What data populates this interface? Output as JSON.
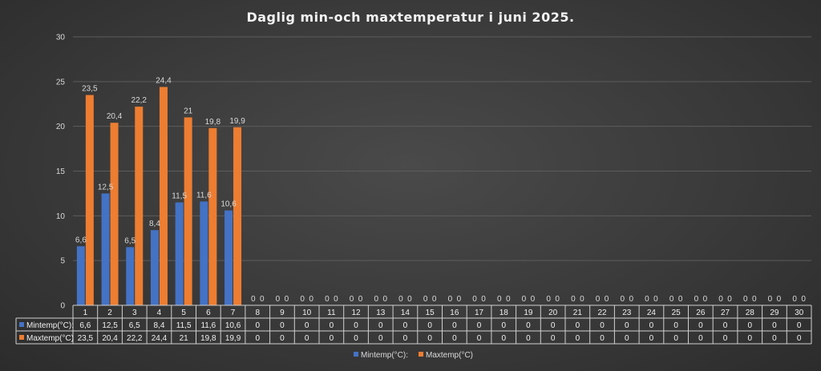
{
  "chart_data": {
    "type": "bar",
    "title": "Daglig min-och maxtemperatur i juni 2025.",
    "xlabel": "",
    "ylabel": "",
    "ylim": [
      0,
      30
    ],
    "yticks": [
      0,
      5,
      10,
      15,
      20,
      25,
      30
    ],
    "grid": true,
    "legend_position": "bottom",
    "categories": [
      "1",
      "2",
      "3",
      "4",
      "5",
      "6",
      "7",
      "8",
      "9",
      "10",
      "11",
      "12",
      "13",
      "14",
      "15",
      "16",
      "17",
      "18",
      "19",
      "20",
      "21",
      "22",
      "23",
      "24",
      "25",
      "26",
      "27",
      "28",
      "29",
      "30"
    ],
    "series": [
      {
        "name": "Mintemp(°C):",
        "color": "#4472c4",
        "values": [
          6.6,
          12.5,
          6.5,
          8.4,
          11.5,
          11.6,
          10.6,
          0,
          0,
          0,
          0,
          0,
          0,
          0,
          0,
          0,
          0,
          0,
          0,
          0,
          0,
          0,
          0,
          0,
          0,
          0,
          0,
          0,
          0,
          0
        ],
        "labels": [
          "6,6",
          "12,5",
          "6,5",
          "8,4",
          "11,5",
          "11,6",
          "10,6",
          "0",
          "0",
          "0",
          "0",
          "0",
          "0",
          "0",
          "0",
          "0",
          "0",
          "0",
          "0",
          "0",
          "0",
          "0",
          "0",
          "0",
          "0",
          "0",
          "0",
          "0",
          "0",
          "0"
        ]
      },
      {
        "name": "Maxtemp(°C)",
        "color": "#ed7d31",
        "values": [
          23.5,
          20.4,
          22.2,
          24.4,
          21,
          19.8,
          19.9,
          0,
          0,
          0,
          0,
          0,
          0,
          0,
          0,
          0,
          0,
          0,
          0,
          0,
          0,
          0,
          0,
          0,
          0,
          0,
          0,
          0,
          0,
          0
        ],
        "labels": [
          "23,5",
          "20,4",
          "22,2",
          "24,4",
          "21",
          "19,8",
          "19,9",
          "0",
          "0",
          "0",
          "0",
          "0",
          "0",
          "0",
          "0",
          "0",
          "0",
          "0",
          "0",
          "0",
          "0",
          "0",
          "0",
          "0",
          "0",
          "0",
          "0",
          "0",
          "0",
          "0"
        ]
      }
    ]
  }
}
